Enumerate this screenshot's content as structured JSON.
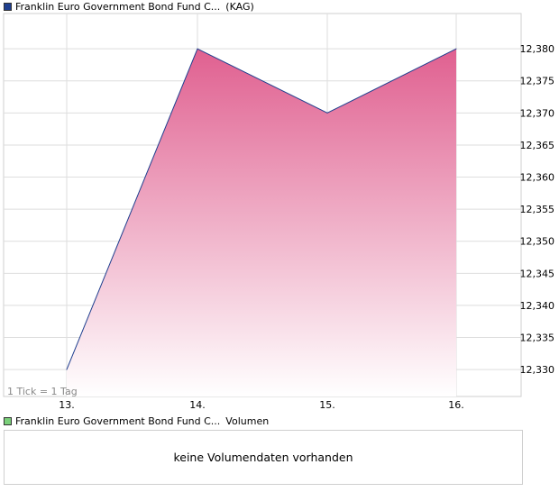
{
  "legend_top": {
    "name": "Franklin Euro Government Bond Fund C...",
    "suffix": "(KAG)",
    "color": "#1f3f8f"
  },
  "legend_bottom": {
    "name": "Franklin Euro Government Bond Fund C...",
    "suffix": "Volumen",
    "color": "#7ad07a"
  },
  "tick_note": "1 Tick = 1 Tag",
  "volume_message": "keine Volumendaten vorhanden",
  "chart_data": {
    "type": "area",
    "x": [
      "13.",
      "14.",
      "15.",
      "16."
    ],
    "values": [
      12.33,
      12.38,
      12.37,
      12.38
    ],
    "y_ticks": [
      "12,330",
      "12,335",
      "12,340",
      "12,345",
      "12,350",
      "12,355",
      "12,360",
      "12,365",
      "12,370",
      "12,375",
      "12,380"
    ],
    "y_tick_values": [
      12.33,
      12.335,
      12.34,
      12.345,
      12.35,
      12.355,
      12.36,
      12.365,
      12.37,
      12.375,
      12.38
    ],
    "ylim": [
      12.3258,
      12.3855
    ],
    "grid": true,
    "line_color": "#1f3f8f",
    "fill_color_top": "#e06090",
    "fill_color_bottom": "#ffffff",
    "y_axis_position": "right"
  }
}
